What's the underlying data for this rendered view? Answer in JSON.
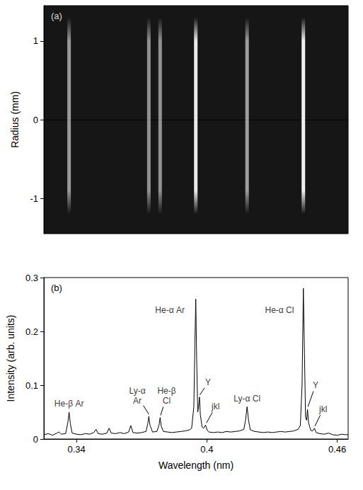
{
  "chart_data": [
    {
      "type": "image",
      "label": "(a)",
      "ylabel": "Radius (mm)",
      "xlim": [
        0.325,
        0.465
      ],
      "ylim": [
        -1.45,
        1.45
      ],
      "yticks": [
        -1,
        0,
        1
      ],
      "tick_labels": "y",
      "streaks": {
        "x": [
          0.3366,
          0.3733,
          0.3785,
          0.3949,
          0.4185,
          0.4444
        ],
        "intensity": [
          0.05,
          0.04,
          0.04,
          0.26,
          0.06,
          0.28
        ],
        "radius": [
          -1.2,
          1.3
        ]
      },
      "color_range": [
        0,
        0.28
      ]
    },
    {
      "type": "line",
      "label": "(b)",
      "xlabel": "Wavelength (nm)",
      "ylabel": "Intensity (arb. units)",
      "xlim": [
        0.325,
        0.465
      ],
      "xticks": [
        0.34,
        0.4,
        0.46
      ],
      "ylim": [
        0,
        0.3
      ],
      "yticks": [
        0,
        0.1,
        0.2,
        0.3
      ],
      "color": "#000000",
      "x": [
        0.325,
        0.327,
        0.329,
        0.331,
        0.332,
        0.333,
        0.335,
        0.336,
        0.3366,
        0.3372,
        0.338,
        0.34,
        0.342,
        0.344,
        0.346,
        0.348,
        0.349,
        0.35,
        0.352,
        0.354,
        0.355,
        0.356,
        0.358,
        0.36,
        0.362,
        0.364,
        0.365,
        0.366,
        0.368,
        0.37,
        0.372,
        0.3728,
        0.3733,
        0.3738,
        0.375,
        0.377,
        0.378,
        0.3785,
        0.379,
        0.38,
        0.382,
        0.384,
        0.386,
        0.388,
        0.39,
        0.392,
        0.393,
        0.394,
        0.3945,
        0.3949,
        0.3953,
        0.3958,
        0.3962,
        0.3966,
        0.397,
        0.3978,
        0.3985,
        0.3994,
        0.4002,
        0.401,
        0.403,
        0.405,
        0.407,
        0.409,
        0.411,
        0.413,
        0.415,
        0.417,
        0.4178,
        0.4185,
        0.4192,
        0.42,
        0.422,
        0.424,
        0.426,
        0.428,
        0.43,
        0.432,
        0.434,
        0.436,
        0.438,
        0.44,
        0.442,
        0.443,
        0.4438,
        0.4444,
        0.4449,
        0.4454,
        0.4459,
        0.4463,
        0.4468,
        0.4478,
        0.4487,
        0.4495,
        0.4503,
        0.452,
        0.454,
        0.456,
        0.458,
        0.46,
        0.462,
        0.464,
        0.465
      ],
      "values": [
        0.008,
        0.01,
        0.007,
        0.011,
        0.013,
        0.009,
        0.01,
        0.03,
        0.05,
        0.028,
        0.011,
        0.009,
        0.008,
        0.01,
        0.009,
        0.012,
        0.018,
        0.01,
        0.009,
        0.011,
        0.02,
        0.011,
        0.01,
        0.012,
        0.01,
        0.013,
        0.025,
        0.012,
        0.011,
        0.012,
        0.014,
        0.028,
        0.042,
        0.026,
        0.013,
        0.014,
        0.026,
        0.04,
        0.024,
        0.014,
        0.013,
        0.012,
        0.013,
        0.014,
        0.015,
        0.017,
        0.02,
        0.06,
        0.18,
        0.26,
        0.15,
        0.05,
        0.06,
        0.078,
        0.045,
        0.022,
        0.02,
        0.026,
        0.016,
        0.013,
        0.012,
        0.013,
        0.012,
        0.014,
        0.013,
        0.014,
        0.015,
        0.018,
        0.035,
        0.06,
        0.034,
        0.017,
        0.014,
        0.013,
        0.012,
        0.013,
        0.012,
        0.013,
        0.014,
        0.013,
        0.014,
        0.015,
        0.018,
        0.025,
        0.1,
        0.28,
        0.16,
        0.04,
        0.035,
        0.055,
        0.03,
        0.016,
        0.015,
        0.02,
        0.012,
        0.01,
        0.009,
        0.011,
        0.008,
        0.007,
        0.009,
        0.008,
        0.008
      ],
      "annotations": [
        {
          "text": "He-β Ar",
          "x": 0.3366,
          "y": 0.066
        },
        {
          "text": "Ly-α\nAr",
          "x": 0.368,
          "y": 0.08,
          "arrow_to": [
            0.3733,
            0.046
          ]
        },
        {
          "text": "He-β\nCl",
          "x": 0.3815,
          "y": 0.08,
          "arrow_to": [
            0.3787,
            0.044
          ]
        },
        {
          "text": "He-α Ar",
          "x": 0.383,
          "y": 0.24
        },
        {
          "text": "Y",
          "x": 0.4005,
          "y": 0.105,
          "arrow_to": [
            0.3968,
            0.082
          ]
        },
        {
          "text": "jkl",
          "x": 0.404,
          "y": 0.06,
          "arrow_to": [
            0.3998,
            0.03
          ]
        },
        {
          "text": "Ly-α Cl",
          "x": 0.4185,
          "y": 0.075
        },
        {
          "text": "He-α Cl",
          "x": 0.4334,
          "y": 0.24
        },
        {
          "text": "Y",
          "x": 0.45,
          "y": 0.1,
          "arrow_to": [
            0.4465,
            0.06
          ]
        },
        {
          "text": "jkl",
          "x": 0.4535,
          "y": 0.055,
          "arrow_to": [
            0.4497,
            0.024
          ]
        }
      ]
    }
  ]
}
